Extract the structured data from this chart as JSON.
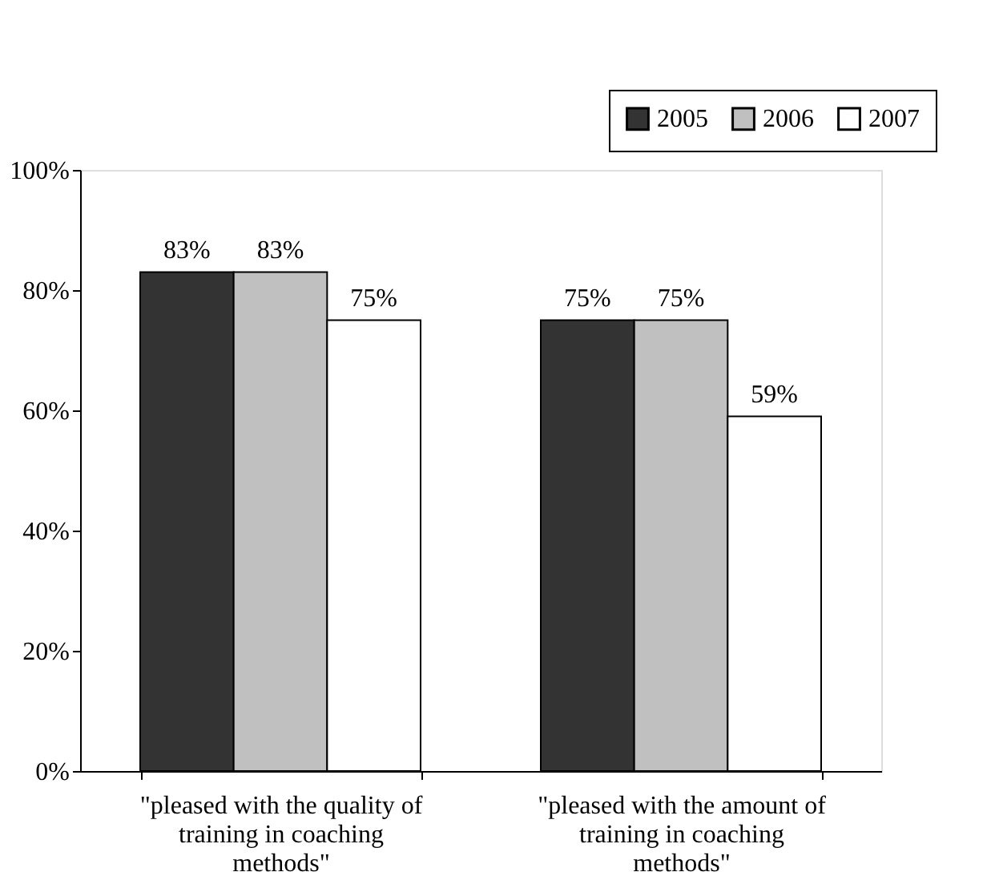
{
  "chart_data": {
    "type": "bar",
    "categories": [
      "\"pleased with the quality of training in coaching methods\"",
      "\"pleased with the amount of training in coaching methods\""
    ],
    "series": [
      {
        "name": "2005",
        "color": "#333333",
        "values": [
          83,
          75
        ],
        "value_labels": [
          "83%",
          "75%"
        ]
      },
      {
        "name": "2006",
        "color": "#c0c0c0",
        "values": [
          83,
          75
        ],
        "value_labels": [
          "83%",
          "75%"
        ]
      },
      {
        "name": "2007",
        "color": "#ffffff",
        "values": [
          75,
          59
        ],
        "value_labels": [
          "75%",
          "59%"
        ]
      }
    ],
    "ylim": [
      0,
      100
    ],
    "yticks": [
      {
        "value": 0,
        "label": "0%"
      },
      {
        "value": 20,
        "label": "20%"
      },
      {
        "value": 40,
        "label": "40%"
      },
      {
        "value": 60,
        "label": "60%"
      },
      {
        "value": 80,
        "label": "80%"
      },
      {
        "value": 100,
        "label": "100%"
      }
    ],
    "grid": false,
    "legend": "top right"
  }
}
